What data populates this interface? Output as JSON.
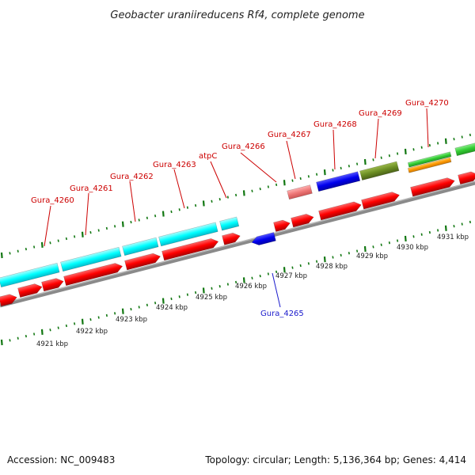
{
  "title": "Geobacter uraniireducens Rf4, complete genome",
  "gene_labels": [
    {
      "id": "Gura_4260",
      "text": "Gura_4260"
    },
    {
      "id": "Gura_4261",
      "text": "Gura_4261"
    },
    {
      "id": "Gura_4262",
      "text": "Gura_4262"
    },
    {
      "id": "Gura_4263",
      "text": "Gura_4263"
    },
    {
      "id": "atpC",
      "text": "atpC"
    },
    {
      "id": "Gura_4266",
      "text": "Gura_4266"
    },
    {
      "id": "Gura_4267",
      "text": "Gura_4267"
    },
    {
      "id": "Gura_4268",
      "text": "Gura_4268"
    },
    {
      "id": "Gura_4269",
      "text": "Gura_4269"
    },
    {
      "id": "Gura_4270",
      "text": "Gura_4270"
    },
    {
      "id": "Gura_4265",
      "text": "Gura_4265"
    }
  ],
  "position_labels": [
    "4921 kbp",
    "4922 kbp",
    "4923 kbp",
    "4924 kbp",
    "4925 kbp",
    "4926 kbp",
    "4927 kbp",
    "4928 kbp",
    "4929 kbp",
    "4930 kbp",
    "4931 kbp"
  ],
  "footer": {
    "accession": "Accession: NC_009483",
    "stats": "Topology: circular; Length: 5,136,364 bp; Genes: 4,414"
  },
  "colors": {
    "cds": "#ff0000",
    "cds_light": "#ff8080",
    "cyan": "#00ffff",
    "blue": "#0000ee",
    "olive": "#6b8e23",
    "orange": "#ff9900",
    "green": "#33cc33",
    "backbone": "#808080",
    "tick": "#117711"
  }
}
